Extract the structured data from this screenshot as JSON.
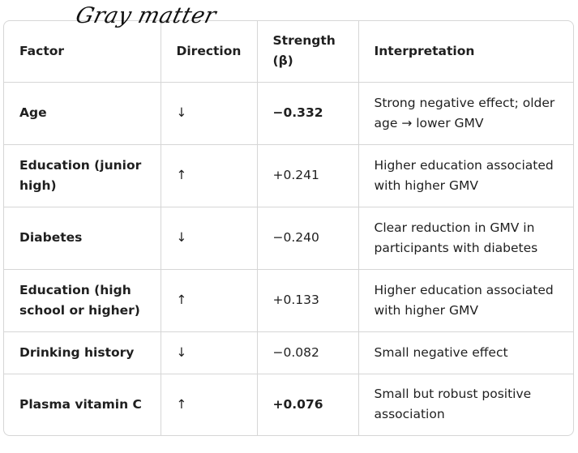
{
  "title": "Gray matter",
  "table": {
    "headers": [
      "Factor",
      "Direction",
      "Strength (β)",
      "Interpretation"
    ],
    "rows": [
      {
        "factor": "Age",
        "direction": "↓",
        "strength": "−0.332",
        "interpretation": "Strong negative effect; older age → lower GMV"
      },
      {
        "factor": "Education (junior high)",
        "direction": "↑",
        "strength": "+0.241",
        "interpretation": "Higher education associated with higher GMV"
      },
      {
        "factor": "Diabetes",
        "direction": "↓",
        "strength": "−0.240",
        "interpretation": "Clear reduction in GMV in participants with diabetes"
      },
      {
        "factor": "Education (high school or higher)",
        "direction": "↑",
        "strength": "+0.133",
        "interpretation": "Higher education associated with higher GMV"
      },
      {
        "factor": "Drinking history",
        "direction": "↓",
        "strength": "−0.082",
        "interpretation": "Small negative effect"
      },
      {
        "factor": "Plasma vitamin C",
        "direction": "↑",
        "strength": "+0.076",
        "interpretation": "Small but robust positive association"
      }
    ]
  }
}
